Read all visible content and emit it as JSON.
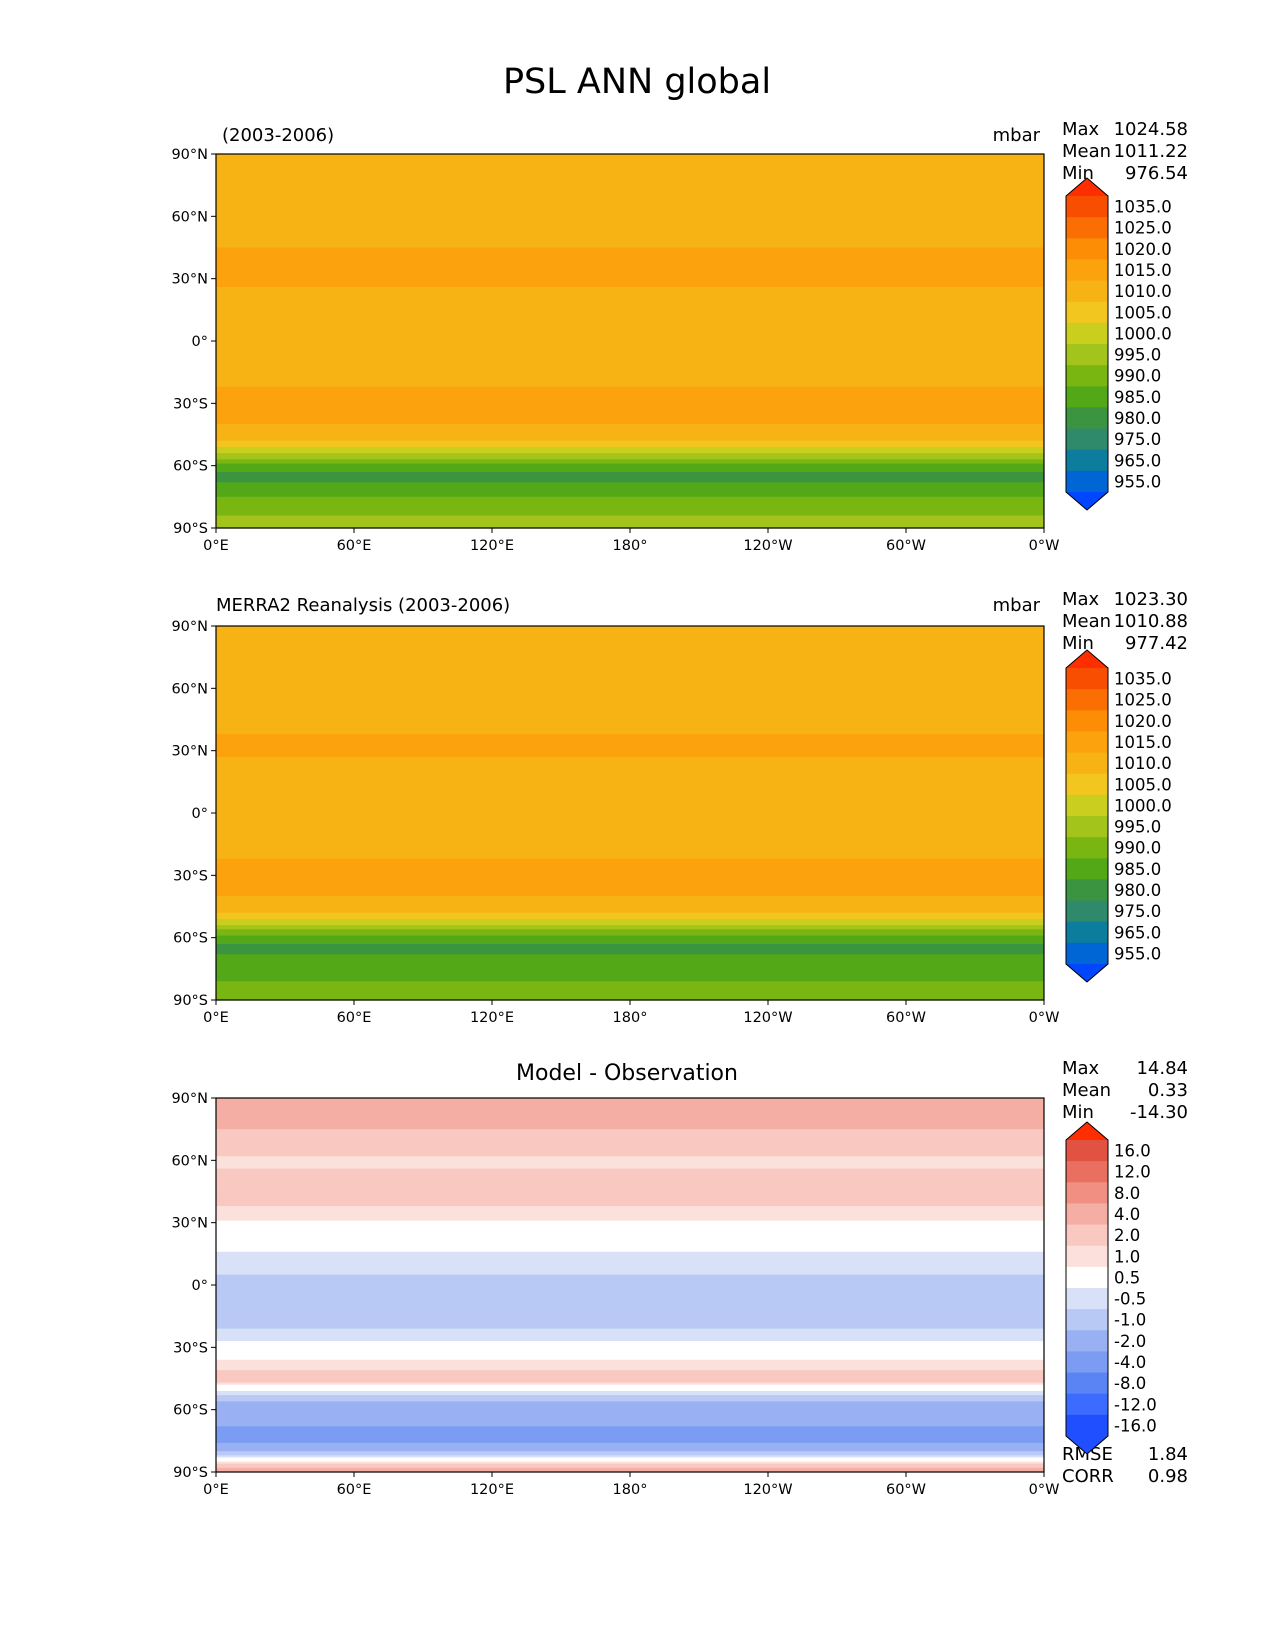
{
  "colors": {
    "psl": [
      "#0046ff",
      "#0066d6",
      "#0c7d9c",
      "#2f8a6b",
      "#3a9440",
      "#53a818",
      "#79b611",
      "#a2c41b",
      "#c9ce1f",
      "#f2c61e",
      "#f7b214",
      "#fca20c",
      "#fd8d05",
      "#fb6e03",
      "#f84e01",
      "#ff2e00"
    ],
    "diff": [
      "#1f4fff",
      "#3c6bff",
      "#5a84f4",
      "#7b9cf2",
      "#99b1f3",
      "#b9c9f5",
      "#d8e1f8",
      "#ffffff",
      "#fbe0dc",
      "#f8c8c1",
      "#f4aea3",
      "#f08f82",
      "#e96f60",
      "#e25242",
      "#ff2e00"
    ]
  },
  "figure": {
    "title": "PSL ANN global"
  },
  "panels": [
    {
      "id": "test",
      "title_left": "(2003-2006)",
      "title_center": "",
      "units": "mbar",
      "stats": [
        {
          "label": "Max",
          "value": "1024.58"
        },
        {
          "label": "Mean",
          "value": "1011.22"
        },
        {
          "label": "Min",
          "value": "976.54"
        }
      ],
      "colorbar_labels": [
        "1035.0",
        "1025.0",
        "1020.0",
        "1015.0",
        "1010.0",
        "1005.0",
        "1000.0",
        "995.0",
        "990.0",
        "985.0",
        "980.0",
        "975.0",
        "965.0",
        "955.0"
      ],
      "extra_stats": []
    },
    {
      "id": "reference",
      "title_left": "MERRA2 Reanalysis (2003-2006)",
      "title_center": "",
      "units": "mbar",
      "stats": [
        {
          "label": "Max",
          "value": "1023.30"
        },
        {
          "label": "Mean",
          "value": "1010.88"
        },
        {
          "label": "Min",
          "value": "977.42"
        }
      ],
      "colorbar_labels": [
        "1035.0",
        "1025.0",
        "1020.0",
        "1015.0",
        "1010.0",
        "1005.0",
        "1000.0",
        "995.0",
        "990.0",
        "985.0",
        "980.0",
        "975.0",
        "965.0",
        "955.0"
      ],
      "extra_stats": []
    },
    {
      "id": "difference",
      "title_left": "",
      "title_center": "Model - Observation",
      "units": "",
      "stats": [
        {
          "label": "Max",
          "value": "14.84"
        },
        {
          "label": "Mean",
          "value": "0.33"
        },
        {
          "label": "Min",
          "value": "-14.30"
        }
      ],
      "colorbar_labels": [
        "16.0",
        "12.0",
        "8.0",
        "4.0",
        "2.0",
        "1.0",
        "0.5",
        "-0.5",
        "-1.0",
        "-2.0",
        "-4.0",
        "-8.0",
        "-12.0",
        "-16.0"
      ],
      "extra_stats": [
        {
          "label": "RMSE",
          "value": "1.84"
        },
        {
          "label": "CORR",
          "value": "0.98"
        }
      ]
    }
  ],
  "chart_data": [
    {
      "type": "heatmap",
      "title": "(2003-2006)",
      "units": "mbar",
      "projection": "cylindrical",
      "xlabel": "",
      "ylabel": "",
      "xlim": [
        0,
        360
      ],
      "ylim": [
        -90,
        90
      ],
      "x_ticks": [
        "0°E",
        "60°E",
        "120°E",
        "180°",
        "120°W",
        "60°W",
        "0°W"
      ],
      "y_ticks": [
        "90°N",
        "60°N",
        "30°N",
        "0°",
        "30°S",
        "60°S",
        "90°S"
      ],
      "contour_levels": [
        955,
        965,
        975,
        980,
        985,
        990,
        995,
        1000,
        1005,
        1010,
        1015,
        1020,
        1025,
        1035
      ],
      "zonal_profile": {
        "lat": [
          90,
          75,
          60,
          45,
          30,
          15,
          0,
          -15,
          -30,
          -45,
          -52,
          -60,
          -65,
          -75,
          -90
        ],
        "value": [
          1014,
          1012,
          1012,
          1015,
          1016,
          1012,
          1010,
          1013,
          1017,
          1014,
          1004,
          988,
          983,
          990,
          998
        ]
      },
      "stats": {
        "max": 1024.58,
        "mean": 1011.22,
        "min": 976.54
      }
    },
    {
      "type": "heatmap",
      "title": "MERRA2 Reanalysis (2003-2006)",
      "units": "mbar",
      "projection": "cylindrical",
      "xlabel": "",
      "ylabel": "",
      "xlim": [
        0,
        360
      ],
      "ylim": [
        -90,
        90
      ],
      "x_ticks": [
        "0°E",
        "60°E",
        "120°E",
        "180°",
        "120°W",
        "60°W",
        "0°W"
      ],
      "y_ticks": [
        "90°N",
        "60°N",
        "30°N",
        "0°",
        "30°S",
        "60°S",
        "90°S"
      ],
      "contour_levels": [
        955,
        965,
        975,
        980,
        985,
        990,
        995,
        1000,
        1005,
        1010,
        1015,
        1020,
        1025,
        1035
      ],
      "zonal_profile": {
        "lat": [
          90,
          75,
          60,
          45,
          30,
          15,
          0,
          -15,
          -30,
          -45,
          -52,
          -60,
          -65,
          -75,
          -90
        ],
        "value": [
          1012,
          1011,
          1011,
          1014,
          1016,
          1011,
          1010,
          1013,
          1017,
          1014,
          1004,
          987,
          984,
          987,
          994
        ]
      },
      "stats": {
        "max": 1023.3,
        "mean": 1010.88,
        "min": 977.42
      }
    },
    {
      "type": "heatmap",
      "title": "Model - Observation",
      "units": "",
      "projection": "cylindrical",
      "xlabel": "",
      "ylabel": "",
      "xlim": [
        0,
        360
      ],
      "ylim": [
        -90,
        90
      ],
      "x_ticks": [
        "0°E",
        "60°E",
        "120°E",
        "180°",
        "120°W",
        "60°W",
        "0°W"
      ],
      "y_ticks": [
        "90°N",
        "60°N",
        "30°N",
        "0°",
        "30°S",
        "60°S",
        "90°S"
      ],
      "contour_levels": [
        -16,
        -12,
        -8,
        -4,
        -2,
        -1,
        -0.5,
        0.5,
        1,
        2,
        4,
        8,
        12,
        16
      ],
      "zonal_profile": {
        "lat": [
          90,
          75,
          60,
          45,
          30,
          15,
          0,
          -15,
          -30,
          -45,
          -60,
          -75,
          -90
        ],
        "value": [
          2.5,
          2.0,
          0.8,
          1.5,
          0.4,
          -0.6,
          -1.2,
          -1.5,
          -0.2,
          1.5,
          -3.5,
          -4.5,
          3.0
        ]
      },
      "stats": {
        "max": 14.84,
        "mean": 0.33,
        "min": -14.3,
        "rmse": 1.84,
        "corr": 0.98
      }
    }
  ]
}
